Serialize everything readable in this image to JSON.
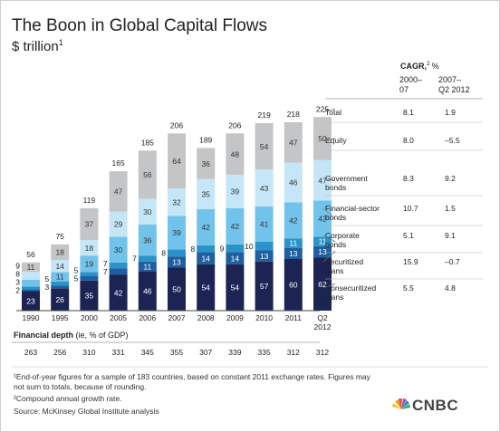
{
  "title": "The Boon in Global Capital Flows",
  "subtitle_unit": "$ trillion",
  "subtitle_footnote_mark": "1",
  "cagr": {
    "heading": "CAGR,",
    "heading_mark": "2",
    "heading_unit": "%",
    "col1_line1": "2000–",
    "col1_line2": "07",
    "col2_line1": "2007–",
    "col2_line2": "Q2 2012"
  },
  "financial_depth_label": "Financial depth",
  "financial_depth_sub": " (ie, % of GDP)",
  "footnotes": [
    "¹End-of-year figures for a sample of 183 countries, based on constant 2011 exchange rates. Figures may",
    "not sum to totals, because of rounding.",
    "²Compound annual growth rate.",
    "Source: McKinsey Global Institute analysis"
  ],
  "logo_text": "CNBC",
  "chart_data": {
    "type": "bar",
    "stacked": true,
    "categories": [
      "1990",
      "1995",
      "2000",
      "2005",
      "2006",
      "2007",
      "2008",
      "2009",
      "2010",
      "2011",
      "Q2 2012"
    ],
    "category_lines": [
      [
        "1990"
      ],
      [
        "1995"
      ],
      [
        "2000"
      ],
      [
        "2005"
      ],
      [
        "2006"
      ],
      [
        "2007"
      ],
      [
        "2008"
      ],
      [
        "2009"
      ],
      [
        "2010"
      ],
      [
        "2011"
      ],
      [
        "Q2",
        "2012"
      ]
    ],
    "totals": [
      56,
      75,
      119,
      165,
      185,
      206,
      189,
      206,
      219,
      218,
      225
    ],
    "series": [
      {
        "name": "Nonsecuritized loans",
        "color": "#1c2454",
        "values": [
          23,
          26,
          35,
          42,
          46,
          50,
          54,
          54,
          57,
          60,
          62
        ],
        "cagr_2000_07": "5.5",
        "cagr_2007_q2_2012": "4.8"
      },
      {
        "name": "Securitized loans",
        "color": "#1f5f9f",
        "values": [
          2,
          3,
          5,
          7,
          11,
          13,
          14,
          14,
          13,
          13,
          13
        ],
        "cagr_2000_07": "15.9",
        "cagr_2007_q2_2012": "–0.7"
      },
      {
        "name": "Corporate bonds",
        "color": "#2b93c9",
        "values": [
          3,
          5,
          5,
          7,
          7,
          8,
          8,
          9,
          10,
          11,
          11
        ],
        "cagr_2000_07": "5.1",
        "cagr_2007_q2_2012": "9.1"
      },
      {
        "name": "Financial-sector bonds",
        "color": "#71c3ec",
        "values": [
          8,
          11,
          19,
          30,
          36,
          39,
          42,
          42,
          41,
          42,
          42
        ],
        "cagr_2000_07": "10.7",
        "cagr_2007_q2_2012": "1.5"
      },
      {
        "name": "Government bonds",
        "color": "#c5e6f7",
        "values": [
          9,
          14,
          18,
          29,
          30,
          32,
          35,
          39,
          43,
          46,
          47
        ],
        "cagr_2000_07": "8.3",
        "cagr_2007_q2_2012": "9.2"
      },
      {
        "name": "Equity",
        "color": "#c3c5c6",
        "values": [
          11,
          18,
          37,
          47,
          56,
          64,
          36,
          48,
          54,
          47,
          50
        ],
        "cagr_2000_07": "8.0",
        "cagr_2007_q2_2012": "–5.5"
      },
      {
        "name": "Total",
        "color": "#ffffff",
        "values": [
          56,
          75,
          119,
          165,
          185,
          206,
          189,
          206,
          219,
          218,
          225
        ],
        "cagr_2000_07": "8.1",
        "cagr_2007_q2_2012": "1.9"
      }
    ],
    "financial_depth": [
      263,
      256,
      310,
      331,
      345,
      355,
      307,
      339,
      335,
      312,
      312
    ],
    "ylim": [
      0,
      225
    ],
    "grid": false,
    "legend": "right"
  }
}
